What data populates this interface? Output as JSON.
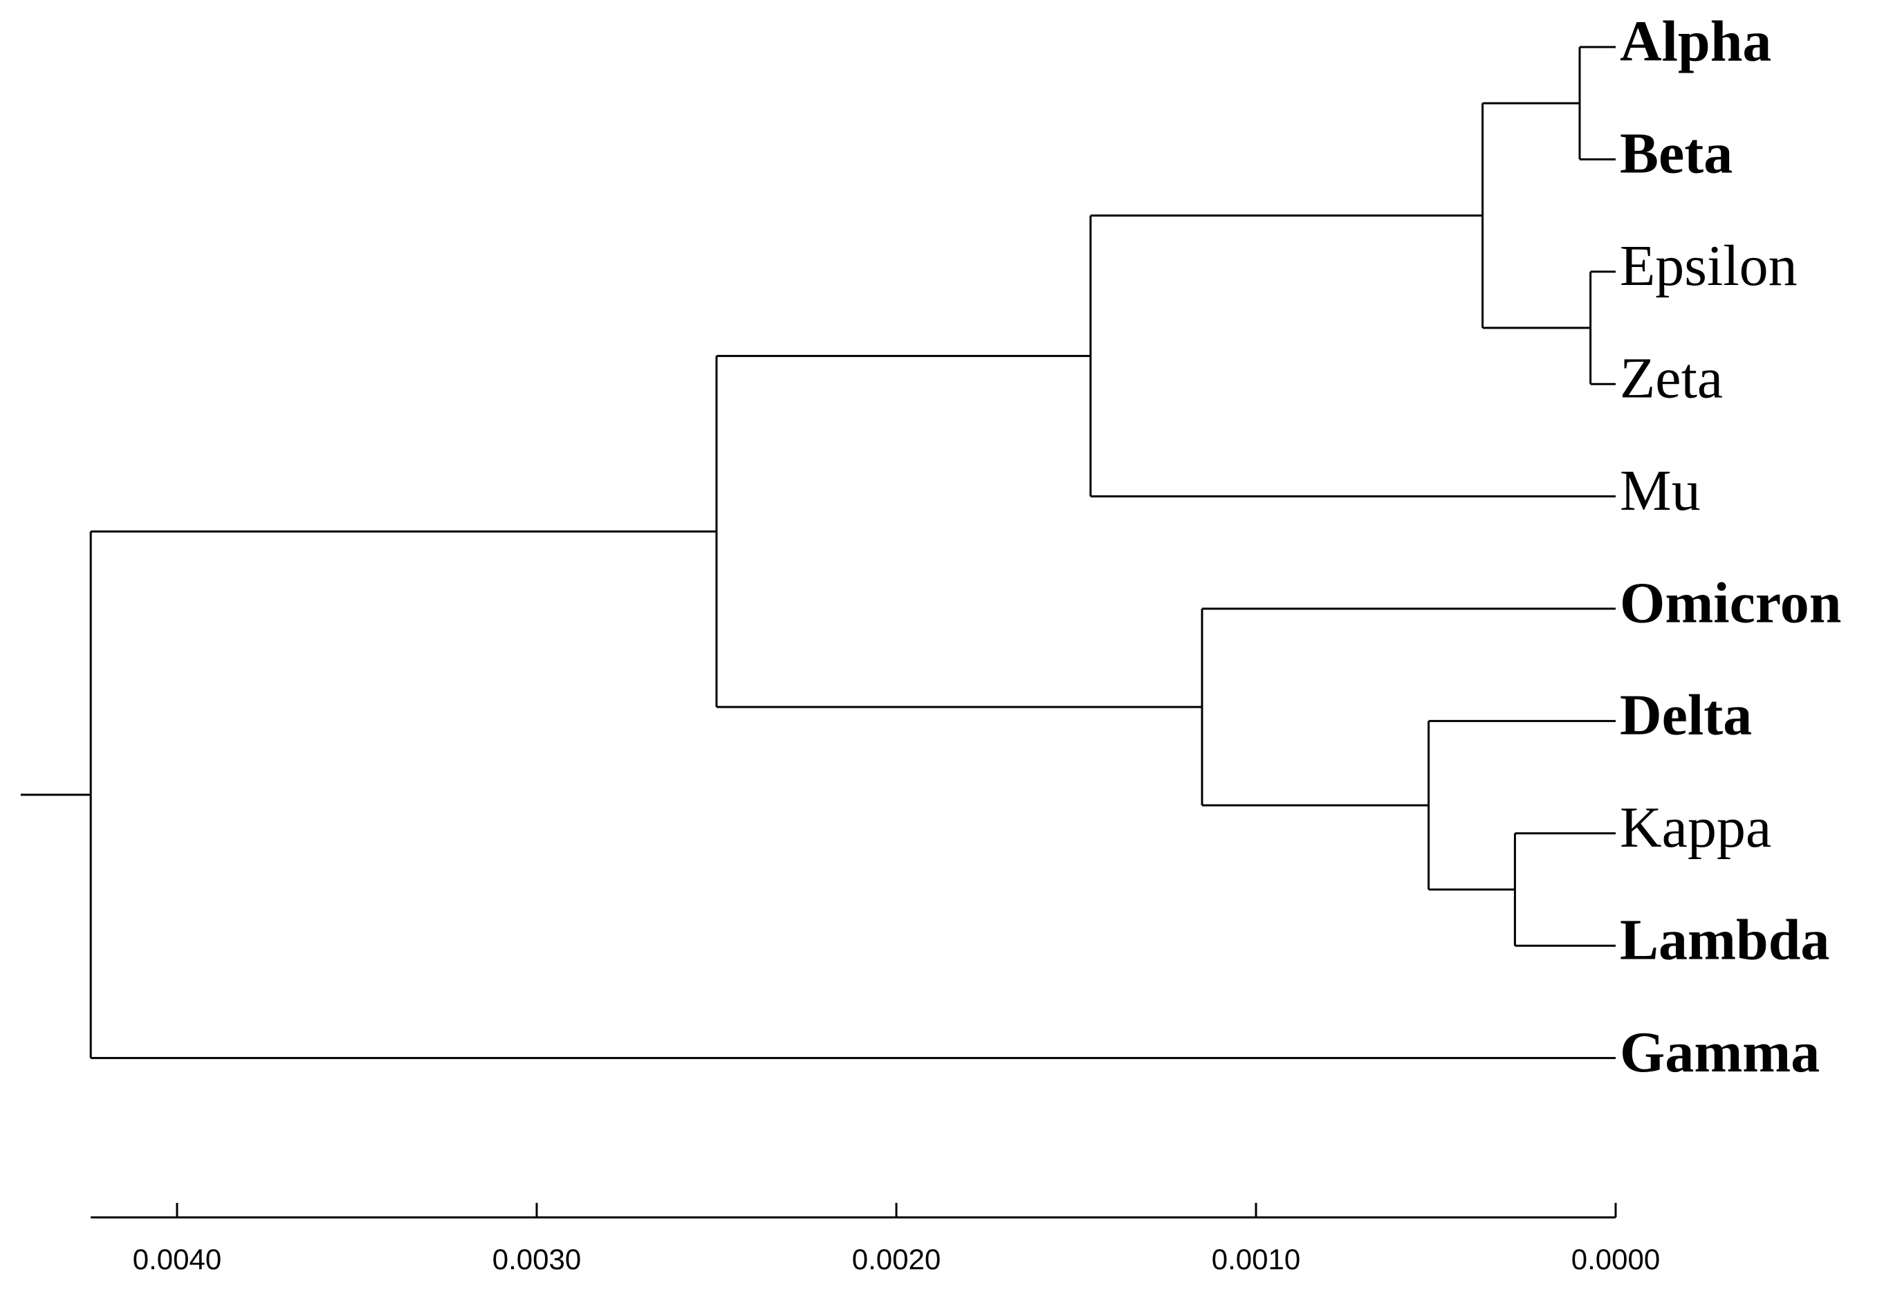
{
  "dendrogram": {
    "leaves": [
      {
        "id": "alpha",
        "label": "Alpha",
        "bold": true
      },
      {
        "id": "beta",
        "label": "Beta",
        "bold": true
      },
      {
        "id": "epsilon",
        "label": "Epsilon",
        "bold": false
      },
      {
        "id": "zeta",
        "label": "Zeta",
        "bold": false
      },
      {
        "id": "mu",
        "label": "Mu",
        "bold": false
      },
      {
        "id": "omicron",
        "label": "Omicron",
        "bold": true
      },
      {
        "id": "delta",
        "label": "Delta",
        "bold": true
      },
      {
        "id": "kappa",
        "label": "Kappa",
        "bold": false
      },
      {
        "id": "lambda",
        "label": "Lambda",
        "bold": true
      },
      {
        "id": "gamma",
        "label": "Gamma",
        "bold": true
      }
    ],
    "clusters": [
      {
        "id": "c_alpha_beta",
        "height": 0.0001,
        "children": [
          "alpha",
          "beta"
        ]
      },
      {
        "id": "c_epsilon_zeta",
        "height": 7e-05,
        "children": [
          "epsilon",
          "zeta"
        ]
      },
      {
        "id": "c_aebz",
        "height": 0.00037,
        "children": [
          "c_alpha_beta",
          "c_epsilon_zeta"
        ]
      },
      {
        "id": "c_aebz_mu",
        "height": 0.00146,
        "children": [
          "c_aebz",
          "mu"
        ]
      },
      {
        "id": "c_kappa_lambda",
        "height": 0.00028,
        "children": [
          "kappa",
          "lambda"
        ]
      },
      {
        "id": "c_delta_kl",
        "height": 0.00052,
        "children": [
          "delta",
          "c_kappa_lambda"
        ]
      },
      {
        "id": "c_omicron_dkl",
        "height": 0.00115,
        "children": [
          "omicron",
          "c_delta_kl"
        ]
      },
      {
        "id": "c_upper",
        "height": 0.0025,
        "children": [
          "c_aebz_mu",
          "c_omicron_dkl"
        ]
      },
      {
        "id": "c_root",
        "height": 0.00424,
        "children": [
          "c_upper",
          "gamma"
        ]
      }
    ],
    "root": "c_root",
    "axis": {
      "ticks": [
        0.004,
        0.003,
        0.002,
        0.001,
        0.0
      ],
      "tick_labels": [
        "0.0040",
        "0.0030",
        "0.0020",
        "0.0010",
        "0.0000"
      ],
      "range": [
        0.00424,
        0.0
      ]
    }
  }
}
